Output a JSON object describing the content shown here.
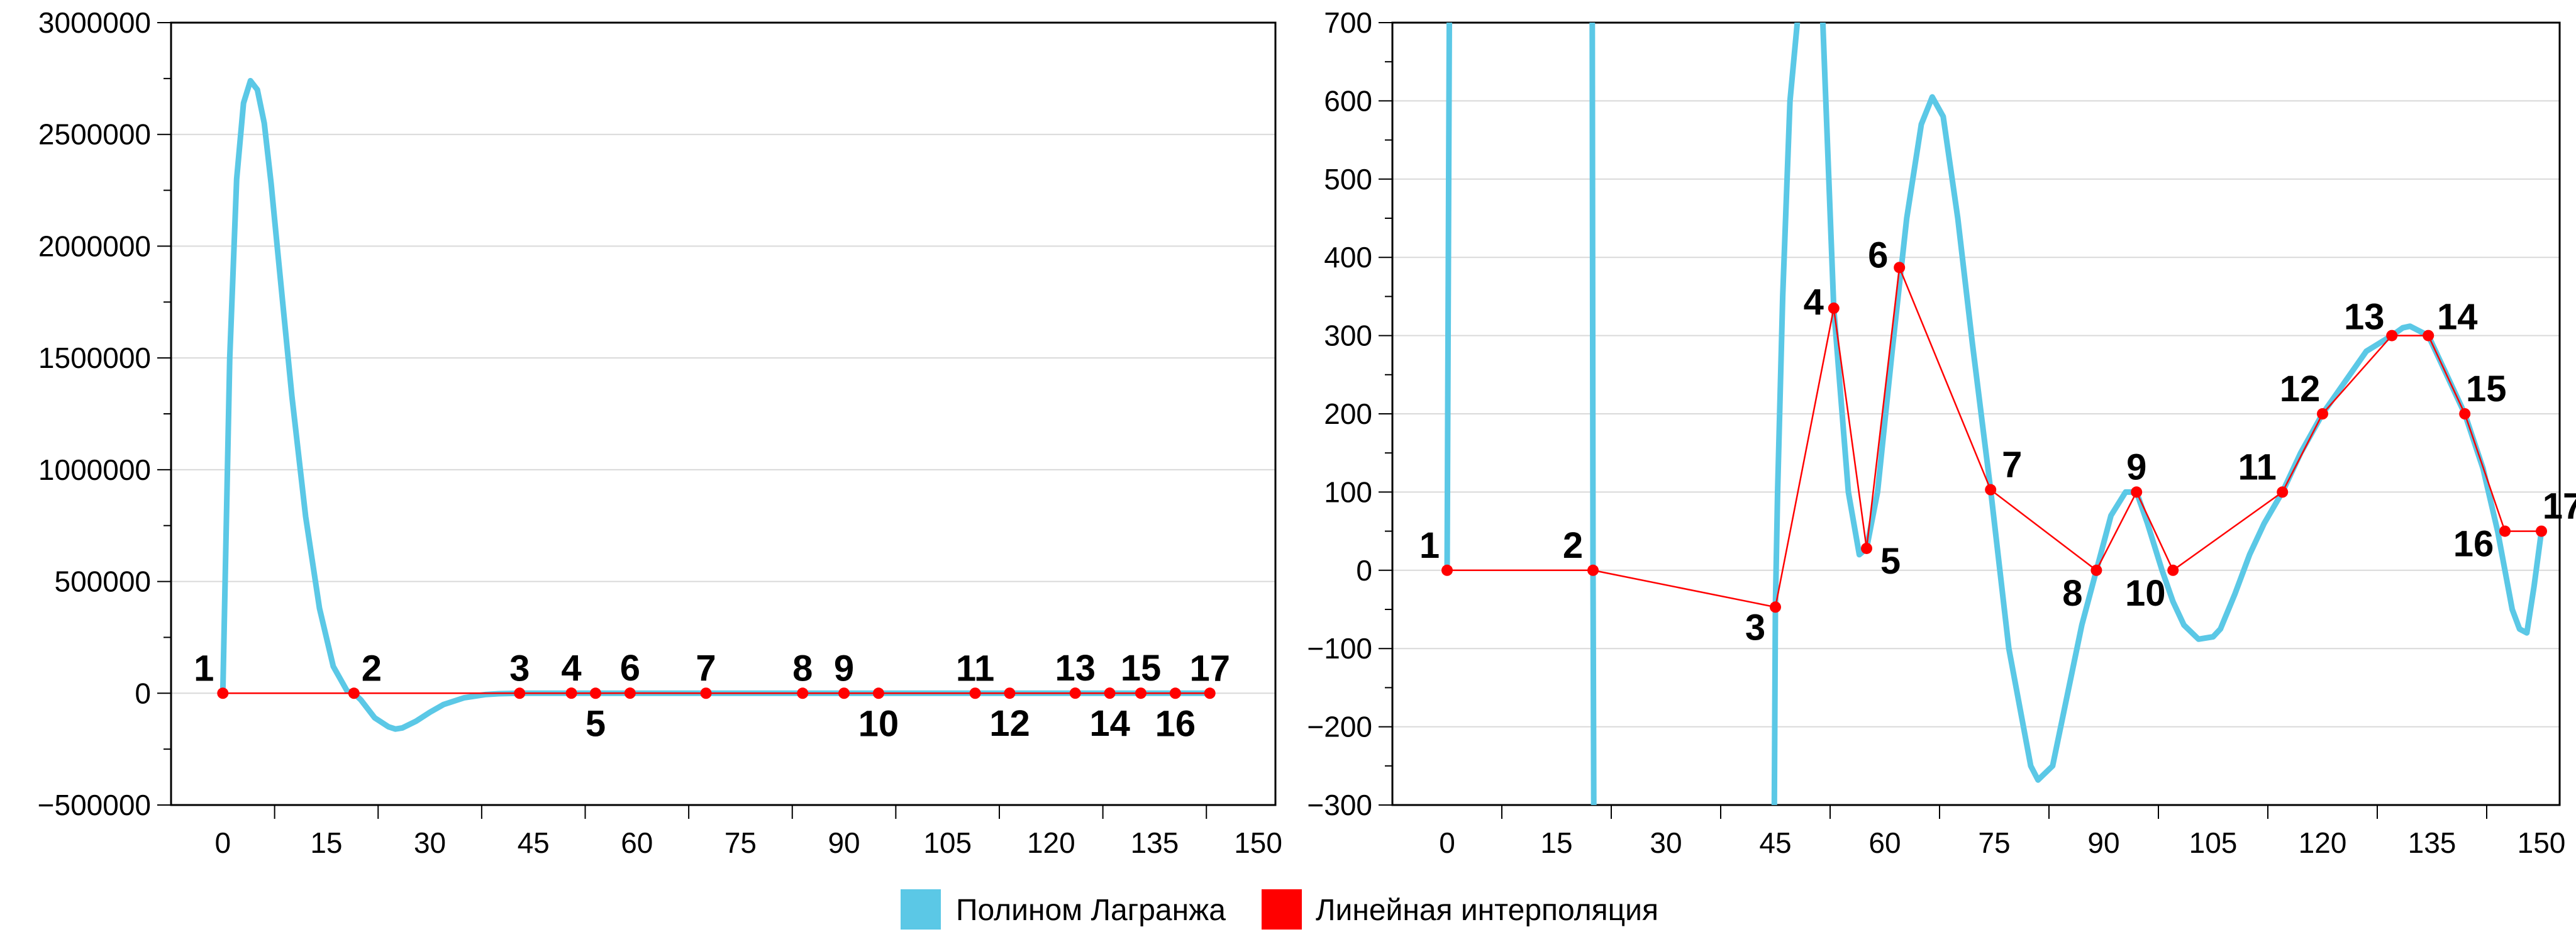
{
  "legend": {
    "lagrange_label": "Полином Лагранжа",
    "linear_label": "Линейная интерполяция",
    "lagrange_color": "#5bc8e6",
    "linear_color": "#ff0000"
  },
  "chart_data": [
    {
      "type": "line",
      "xlim": [
        -7.5,
        152.5
      ],
      "ylim": [
        -500000,
        3000000
      ],
      "x_ticks": [
        0,
        15,
        30,
        45,
        60,
        75,
        90,
        105,
        120,
        135,
        150
      ],
      "y_ticks": [
        -500000,
        0,
        500000,
        1000000,
        1500000,
        2000000,
        2500000,
        3000000
      ],
      "grid": "horizontal",
      "points": [
        {
          "label": "1",
          "x": 0,
          "y": 0
        },
        {
          "label": "2",
          "x": 19,
          "y": 0
        },
        {
          "label": "3",
          "x": 43,
          "y": -47
        },
        {
          "label": "4",
          "x": 50.5,
          "y": 335
        },
        {
          "label": "5",
          "x": 54,
          "y": 28
        },
        {
          "label": "6",
          "x": 59,
          "y": 387
        },
        {
          "label": "7",
          "x": 70,
          "y": 103
        },
        {
          "label": "8",
          "x": 84,
          "y": 0
        },
        {
          "label": "9",
          "x": 90,
          "y": 100
        },
        {
          "label": "10",
          "x": 95,
          "y": 0
        },
        {
          "label": "11",
          "x": 109,
          "y": 100
        },
        {
          "label": "12",
          "x": 114,
          "y": 200
        },
        {
          "label": "13",
          "x": 123.5,
          "y": 300
        },
        {
          "label": "14",
          "x": 128.5,
          "y": 300
        },
        {
          "label": "15",
          "x": 133,
          "y": 200
        },
        {
          "label": "16",
          "x": 138,
          "y": 50
        },
        {
          "label": "17",
          "x": 143,
          "y": 50
        }
      ],
      "series": [
        {
          "name": "Полином Лагранжа",
          "x": [
            0,
            1,
            2,
            3,
            4,
            5,
            6,
            7,
            8,
            10,
            12,
            14,
            16,
            18,
            19,
            20,
            22,
            24,
            25,
            26,
            28,
            30,
            32,
            35,
            38,
            40,
            43,
            45,
            50,
            60,
            70,
            80,
            90,
            100,
            110,
            120,
            130,
            140,
            143
          ],
          "y": [
            0,
            1500000,
            2300000,
            2640000,
            2740000,
            2700000,
            2550000,
            2280000,
            1960000,
            1330000,
            790000,
            380000,
            120000,
            10000,
            0,
            -30000,
            -110000,
            -150000,
            -160000,
            -155000,
            -125000,
            -85000,
            -50000,
            -20000,
            -6000,
            -2000,
            0,
            0,
            0,
            0,
            0,
            0,
            0,
            0,
            0,
            0,
            0,
            0,
            0
          ]
        },
        {
          "name": "Линейная интерполяция",
          "from_points": true
        }
      ]
    },
    {
      "type": "line",
      "xlim": [
        -7.5,
        152.5
      ],
      "ylim": [
        -300,
        700
      ],
      "x_ticks": [
        0,
        15,
        30,
        45,
        60,
        75,
        90,
        105,
        120,
        135,
        150
      ],
      "y_ticks": [
        -300,
        -200,
        -100,
        0,
        100,
        200,
        300,
        400,
        500,
        600,
        700
      ],
      "grid": "horizontal",
      "points": [
        {
          "label": "1",
          "x": 0,
          "y": 0
        },
        {
          "label": "2",
          "x": 20,
          "y": 0
        },
        {
          "label": "3",
          "x": 45,
          "y": -47
        },
        {
          "label": "4",
          "x": 53,
          "y": 335
        },
        {
          "label": "5",
          "x": 57.5,
          "y": 28
        },
        {
          "label": "6",
          "x": 62,
          "y": 387
        },
        {
          "label": "7",
          "x": 74.5,
          "y": 103
        },
        {
          "label": "8",
          "x": 89,
          "y": 0
        },
        {
          "label": "9",
          "x": 94.5,
          "y": 100
        },
        {
          "label": "10",
          "x": 99.5,
          "y": 0
        },
        {
          "label": "11",
          "x": 114.5,
          "y": 100
        },
        {
          "label": "12",
          "x": 120,
          "y": 200
        },
        {
          "label": "13",
          "x": 129.5,
          "y": 300
        },
        {
          "label": "14",
          "x": 134.5,
          "y": 300
        },
        {
          "label": "15",
          "x": 139.5,
          "y": 200
        },
        {
          "label": "16",
          "x": 145,
          "y": 50
        },
        {
          "label": "17",
          "x": 150,
          "y": 50
        }
      ],
      "series": [
        {
          "name": "Полином Лагранжа",
          "segments": [
            {
              "x": [
                0,
                0.3
              ],
              "y": [
                0,
                700
              ]
            },
            {
              "x": [
                19.9,
                20,
                20.1
              ],
              "y": [
                700,
                0,
                -300
              ]
            },
            {
              "x": [
                44.85,
                45,
                45.3,
                46,
                47,
                48
              ],
              "y": [
                -300,
                -47,
                100,
                350,
                600,
                700
              ]
            },
            {
              "x": [
                51.5,
                53,
                55,
                56.5,
                57.5,
                59,
                61,
                63,
                65,
                66.5,
                68,
                70,
                72,
                74.5,
                77,
                80,
                81,
                83,
                85,
                87,
                89,
                91,
                93,
                94.5,
                96,
                98,
                99.5,
                101,
                103,
                105,
                106,
                108,
                110,
                112,
                114.5,
                117,
                120,
                123,
                126,
                129.5,
                131,
                132,
                134.5,
                136,
                137.5,
                139.5,
                142,
                144,
                145,
                146,
                147,
                148,
                149,
                150
              ],
              "y": [
                700,
                335,
                100,
                20,
                28,
                100,
                280,
                450,
                570,
                605,
                580,
                450,
                290,
                103,
                -100,
                -250,
                -268,
                -250,
                -160,
                -70,
                0,
                70,
                100,
                100,
                60,
                0,
                -40,
                -70,
                -88,
                -85,
                -75,
                -30,
                20,
                60,
                100,
                150,
                200,
                240,
                280,
                300,
                310,
                312,
                300,
                270,
                240,
                200,
                130,
                50,
                0,
                -50,
                -75,
                -80,
                -20,
                50
              ]
            }
          ]
        },
        {
          "name": "Линейная интерполяция",
          "from_points": true
        }
      ]
    }
  ]
}
